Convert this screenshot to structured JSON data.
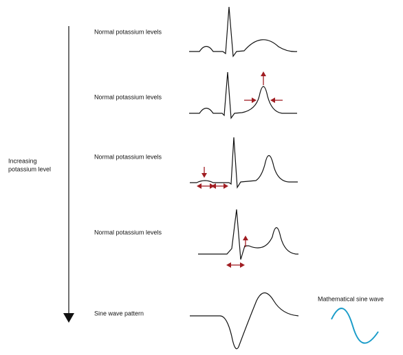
{
  "side_label": {
    "lines": [
      "Increasing",
      "potassium level"
    ]
  },
  "rows": [
    {
      "label": "Normal potassium levels"
    },
    {
      "label": "Normal potassium levels"
    },
    {
      "label": "Normal potassium levels"
    },
    {
      "label": "Normal potassium levels"
    },
    {
      "label": "Sine wave pattern"
    }
  ],
  "sine_label": "Mathematical sine wave"
}
